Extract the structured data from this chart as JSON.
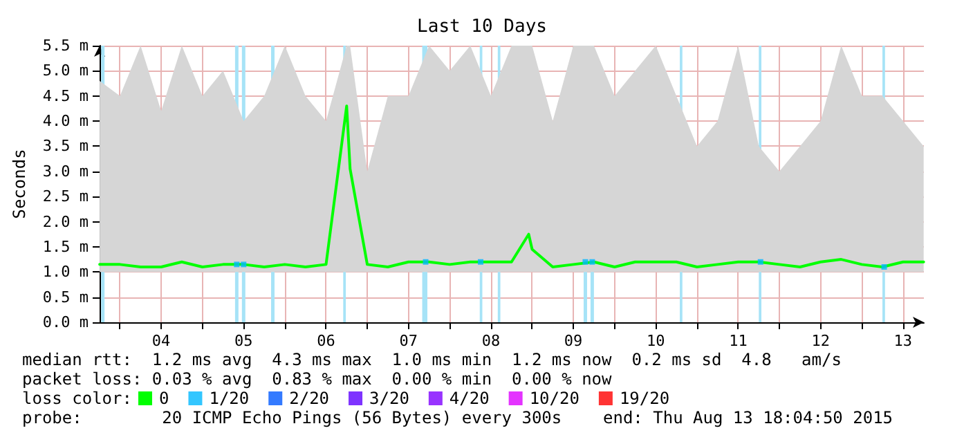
{
  "chart_data": {
    "type": "line",
    "title": "Last 10 Days",
    "ylabel": "Seconds",
    "xlim": [
      "2015-08-03T18:04",
      "2015-08-13T18:04"
    ],
    "xticks": [
      {
        "value": "2015-08-04T00:00",
        "label": null
      },
      {
        "value": "2015-08-04T12:00",
        "label": "04"
      },
      {
        "value": "2015-08-05T00:00",
        "label": null
      },
      {
        "value": "2015-08-05T12:00",
        "label": "05"
      },
      {
        "value": "2015-08-06T00:00",
        "label": null
      },
      {
        "value": "2015-08-06T12:00",
        "label": "06"
      },
      {
        "value": "2015-08-07T00:00",
        "label": null
      },
      {
        "value": "2015-08-07T12:00",
        "label": "07"
      },
      {
        "value": "2015-08-08T00:00",
        "label": null
      },
      {
        "value": "2015-08-08T12:00",
        "label": "08"
      },
      {
        "value": "2015-08-09T00:00",
        "label": null
      },
      {
        "value": "2015-08-09T12:00",
        "label": "09"
      },
      {
        "value": "2015-08-10T00:00",
        "label": null
      },
      {
        "value": "2015-08-10T12:00",
        "label": "10"
      },
      {
        "value": "2015-08-11T00:00",
        "label": null
      },
      {
        "value": "2015-08-11T12:00",
        "label": "11"
      },
      {
        "value": "2015-08-12T00:00",
        "label": null
      },
      {
        "value": "2015-08-12T12:00",
        "label": "12"
      },
      {
        "value": "2015-08-13T00:00",
        "label": null
      },
      {
        "value": "2015-08-13T12:00",
        "label": "13"
      }
    ],
    "ylim": [
      0,
      5.5
    ],
    "yticks": [
      {
        "value": 0,
        "label": "0.0 m"
      },
      {
        "value": 0.5,
        "label": "0.5 m"
      },
      {
        "value": 1,
        "label": "1.0 m"
      },
      {
        "value": 1.5,
        "label": "1.5 m"
      },
      {
        "value": 2,
        "label": "2.0 m"
      },
      {
        "value": 2.5,
        "label": "2.5 m"
      },
      {
        "value": 3,
        "label": "3.0 m"
      },
      {
        "value": 3.5,
        "label": "3.5 m"
      },
      {
        "value": 4,
        "label": "4.0 m"
      },
      {
        "value": 4.5,
        "label": "4.5 m"
      },
      {
        "value": 5,
        "label": "5.0 m"
      },
      {
        "value": 5.5,
        "label": "5.5 m"
      }
    ],
    "grid": true,
    "legend": "bottom",
    "legend_title": "loss color:",
    "line_style": "solid",
    "series": [
      {
        "name": "0",
        "color": "#00ff00",
        "marker": "none",
        "x": [
          "2015-08-03T18:05",
          "2015-08-04T00:00",
          "2015-08-04T06:00",
          "2015-08-04T12:00",
          "2015-08-04T18:00",
          "2015-08-05T00:00",
          "2015-08-05T06:00",
          "2015-08-05T12:00",
          "2015-08-05T18:00",
          "2015-08-06T00:00",
          "2015-08-06T06:00",
          "2015-08-06T12:00",
          "2015-08-06T18:00",
          "2015-08-06T19:00",
          "2015-08-07T00:00",
          "2015-08-07T06:00",
          "2015-08-07T12:00",
          "2015-08-07T18:00",
          "2015-08-08T00:00",
          "2015-08-08T06:00",
          "2015-08-08T12:00",
          "2015-08-08T18:00",
          "2015-08-08T23:00",
          "2015-08-09T00:00",
          "2015-08-09T06:00",
          "2015-08-09T12:00",
          "2015-08-09T18:00",
          "2015-08-10T00:00",
          "2015-08-10T06:00",
          "2015-08-10T12:00",
          "2015-08-10T18:00",
          "2015-08-11T00:00",
          "2015-08-11T06:00",
          "2015-08-11T12:00",
          "2015-08-11T18:00",
          "2015-08-12T00:00",
          "2015-08-12T06:00",
          "2015-08-12T12:00",
          "2015-08-12T18:00",
          "2015-08-13T00:00",
          "2015-08-13T06:00",
          "2015-08-13T12:00",
          "2015-08-13T18:00"
        ],
        "values": [
          1.15,
          1.15,
          1.1,
          1.1,
          1.2,
          1.1,
          1.15,
          1.15,
          1.1,
          1.15,
          1.1,
          1.15,
          4.3,
          3.05,
          1.15,
          1.1,
          1.2,
          1.2,
          1.15,
          1.2,
          1.2,
          1.2,
          1.75,
          1.45,
          1.1,
          1.15,
          1.2,
          1.1,
          1.2,
          1.2,
          1.2,
          1.1,
          1.15,
          1.2,
          1.2,
          1.15,
          1.1,
          1.2,
          1.25,
          1.15,
          1.1,
          1.2,
          1.2
        ],
        "lower": [
          1,
          1,
          1,
          1,
          1,
          1,
          1,
          1,
          1,
          1,
          1,
          1,
          1,
          1,
          1,
          1,
          1,
          1,
          1,
          1,
          1,
          1,
          1,
          1,
          1,
          1,
          1,
          1,
          1,
          1,
          1,
          1,
          1,
          1,
          1,
          1,
          1,
          1,
          1,
          1,
          1,
          1,
          1
        ],
        "upper": [
          4.8,
          4.5,
          5.5,
          4.2,
          5.5,
          4.5,
          5,
          4,
          4.5,
          5.5,
          4.5,
          4,
          5.5,
          5.5,
          3,
          4.5,
          4.5,
          5.5,
          5,
          5.5,
          4.5,
          5.5,
          5.5,
          5.5,
          4,
          5.5,
          5.5,
          4.5,
          5,
          5.5,
          4.5,
          3.5,
          4,
          5.5,
          3.5,
          3,
          3.5,
          4,
          5.5,
          4.5,
          4.5,
          4,
          3.5
        ]
      },
      {
        "name": "1/20",
        "type": "scatter",
        "color": "#00b8ff",
        "marker": "square",
        "x": [
          "2015-08-05T10:00",
          "2015-08-05T12:00",
          "2015-08-07T17:00",
          "2015-08-08T09:00",
          "2015-08-09T15:30",
          "2015-08-09T17:30",
          "2015-08-11T18:30",
          "2015-08-13T06:30"
        ],
        "values": [
          1.15,
          1.15,
          1.2,
          1.2,
          1.2,
          1.2,
          1.2,
          1.1
        ]
      },
      {
        "name": "2/20",
        "type": "scatter",
        "color": "#0059ff"
      },
      {
        "name": "3/20",
        "type": "scatter",
        "color": "#5e00ff"
      },
      {
        "name": "4/20",
        "type": "scatter",
        "color": "#7e00ff"
      },
      {
        "name": "10/20",
        "type": "scatter",
        "color": "#dd00ff"
      },
      {
        "name": "19/20",
        "type": "scatter",
        "color": "#ff0000"
      }
    ],
    "bands": [
      {
        "axis": "x",
        "from": "2015-08-03T18:30",
        "to": "2015-08-03T19:30",
        "color": "#a6e3f7"
      },
      {
        "axis": "x",
        "from": "2015-08-05T09:30",
        "to": "2015-08-05T10:30",
        "color": "#a6e3f7"
      },
      {
        "axis": "x",
        "from": "2015-08-05T11:30",
        "to": "2015-08-05T12:30",
        "color": "#a6e3f7"
      },
      {
        "axis": "x",
        "from": "2015-08-05T20:00",
        "to": "2015-08-05T21:00",
        "color": "#a6e3f7"
      },
      {
        "axis": "x",
        "from": "2015-08-06T17:00",
        "to": "2015-08-06T17:45",
        "color": "#a6e3f7"
      },
      {
        "axis": "x",
        "from": "2015-08-07T16:00",
        "to": "2015-08-07T17:30",
        "color": "#a6e3f7"
      },
      {
        "axis": "x",
        "from": "2015-08-08T08:45",
        "to": "2015-08-08T09:30",
        "color": "#a6e3f7"
      },
      {
        "axis": "x",
        "from": "2015-08-08T14:00",
        "to": "2015-08-08T14:45",
        "color": "#a6e3f7"
      },
      {
        "axis": "x",
        "from": "2015-08-09T15:00",
        "to": "2015-08-09T16:00",
        "color": "#a6e3f7"
      },
      {
        "axis": "x",
        "from": "2015-08-09T17:00",
        "to": "2015-08-09T18:00",
        "color": "#a6e3f7"
      },
      {
        "axis": "x",
        "from": "2015-08-10T19:00",
        "to": "2015-08-10T19:45",
        "color": "#a6e3f7"
      },
      {
        "axis": "x",
        "from": "2015-08-11T18:00",
        "to": "2015-08-11T18:45",
        "color": "#a6e3f7"
      },
      {
        "axis": "x",
        "from": "2015-08-13T06:00",
        "to": "2015-08-13T06:45",
        "color": "#a6e3f7"
      }
    ],
    "annotations": [
      "median rtt:  1.2 ms avg  4.3 ms max  1.0 ms min  1.2 ms now  0.2 ms sd  4.8   am/s",
      "packet loss: 0.03 % avg  0.83 % max  0.00 % min  0.00 % now",
      "probe:        20 ICMP Echo Pings (56 Bytes) every 300s",
      "end: Thu Aug 13 18:04:50 2015"
    ]
  }
}
